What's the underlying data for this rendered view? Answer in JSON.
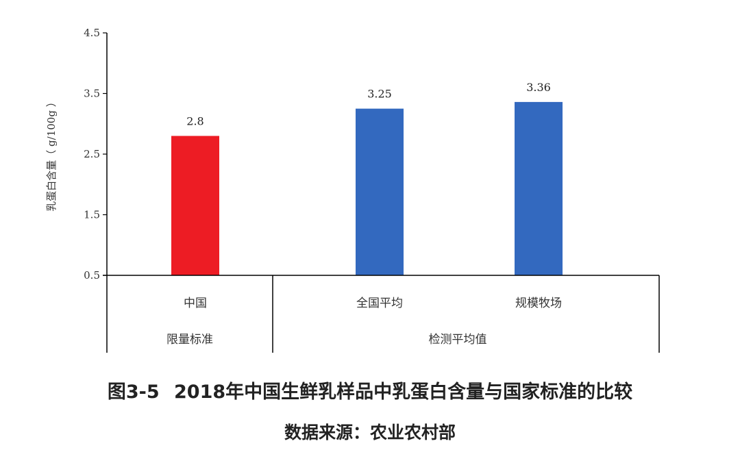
{
  "chart_data": {
    "type": "bar",
    "categories": [
      "中国",
      "全国平均",
      "规模牧场"
    ],
    "groups": [
      {
        "label": "限量标准",
        "categories": [
          "中国"
        ]
      },
      {
        "label": "检测平均值",
        "categories": [
          "全国平均",
          "规模牧场"
        ]
      }
    ],
    "values": [
      2.8,
      3.25,
      3.36
    ],
    "data_labels": [
      "2.8",
      "3.25",
      "3.36"
    ],
    "bar_colors": [
      "#ed1c24",
      "#3369bf",
      "#3369bf"
    ],
    "ylabel": "乳蛋白含量（ g/100g ）",
    "ylim": [
      0.5,
      4.5
    ],
    "yticks": [
      0.5,
      1.5,
      2.5,
      3.5,
      4.5
    ],
    "ytick_labels": [
      "0.5",
      "1.5",
      "2.5",
      "3.5",
      "4.5"
    ],
    "grid": false,
    "legend": "none"
  },
  "figure": {
    "title": "图3-5 2018年中国生鲜乳样品中乳蛋白含量与国家标准的比较",
    "source": "数据来源：农业农村部"
  }
}
